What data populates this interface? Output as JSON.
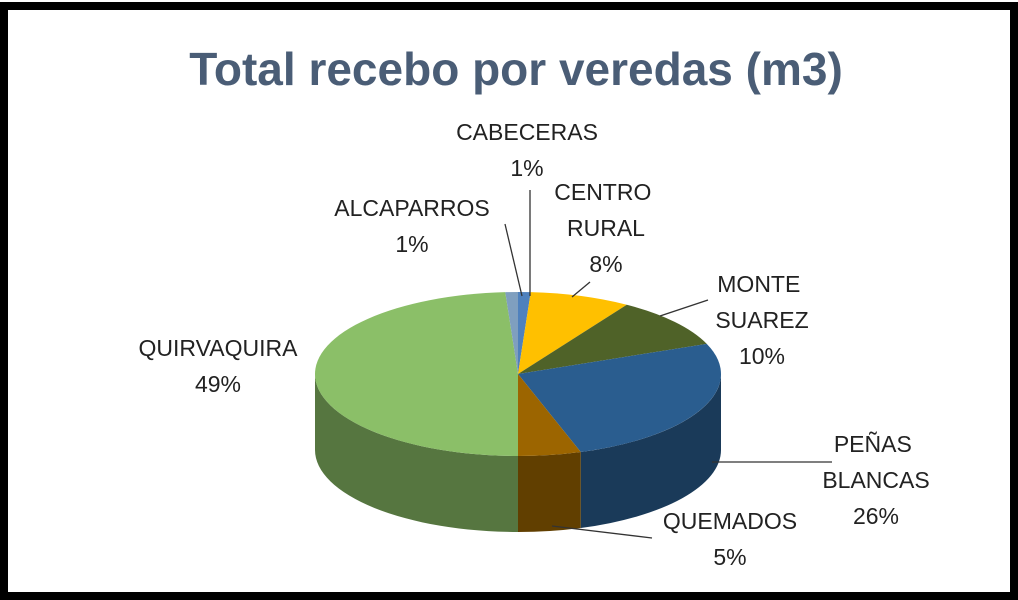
{
  "chart_data": {
    "type": "pie3d",
    "title": "Total recebo por veredas (m3)",
    "categories": [
      "CABECERAS",
      "CENTRO RURAL",
      "MONTE SUAREZ",
      "PEÑAS BLANCAS",
      "QUEMADOS",
      "QUIRVAQUIRA",
      "ALCAPARROS"
    ],
    "values": [
      1,
      8,
      10,
      26,
      5,
      49,
      1
    ],
    "value_labels": [
      "1%",
      "8%",
      "10%",
      "26%",
      "5%",
      "49%",
      "1%"
    ],
    "colors": [
      "#4f81bd",
      "#ffc000",
      "#4f6228",
      "#2a5d8f",
      "#9c6500",
      "#8bbf68",
      "#7f9fbf"
    ]
  }
}
